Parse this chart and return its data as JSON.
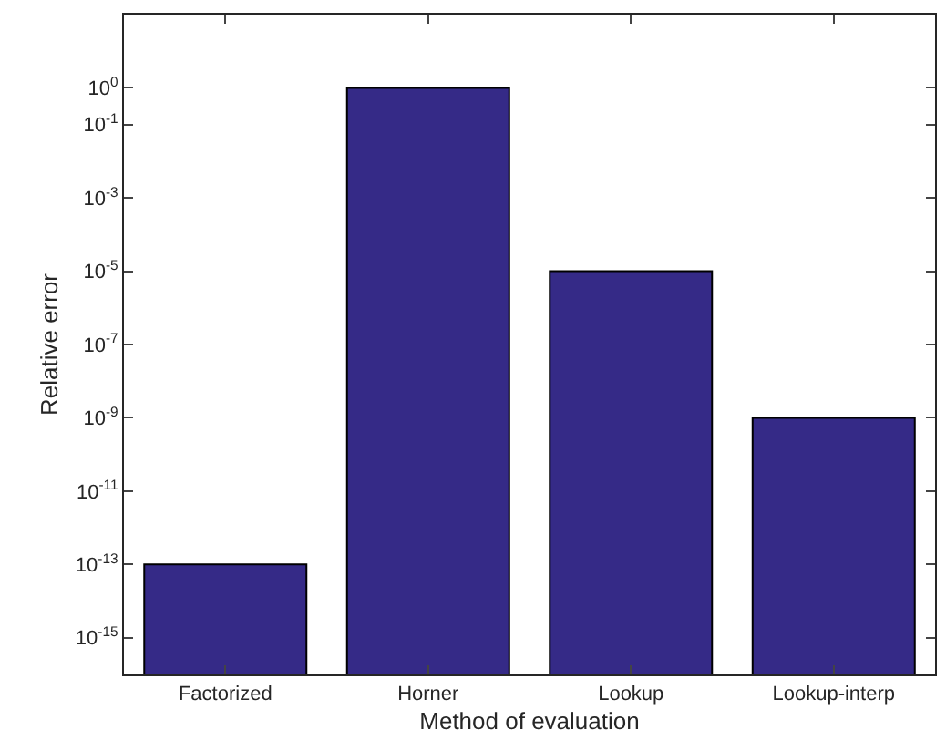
{
  "chart_data": {
    "type": "bar",
    "xlabel": "Method of evaluation",
    "ylabel": "Relative error",
    "categories": [
      "Factorized",
      "Horner",
      "Lookup",
      "Lookup-interp"
    ],
    "values": [
      1e-13,
      1,
      1e-05,
      1e-09
    ],
    "color": "#352a87",
    "log": "y",
    "ylim": [
      1e-16,
      100
    ],
    "yticks": [
      {
        "value": 1,
        "label": "10$^{0}$"
      },
      {
        "value": 0.1,
        "label": "10$^{-1}$"
      },
      {
        "value": 0.001,
        "label": "10$^{-3}$"
      },
      {
        "value": 1e-05,
        "label": "10$^{-5}$"
      },
      {
        "value": 1e-07,
        "label": "10$^{-7}$"
      },
      {
        "value": 1e-09,
        "label": "10$^{-9}$"
      },
      {
        "value": 1e-11,
        "label": "10$^{-11}$"
      },
      {
        "value": 1e-13,
        "label": "10$^{-13}$"
      },
      {
        "value": 1e-15,
        "label": "10$^{-15}$"
      }
    ]
  }
}
